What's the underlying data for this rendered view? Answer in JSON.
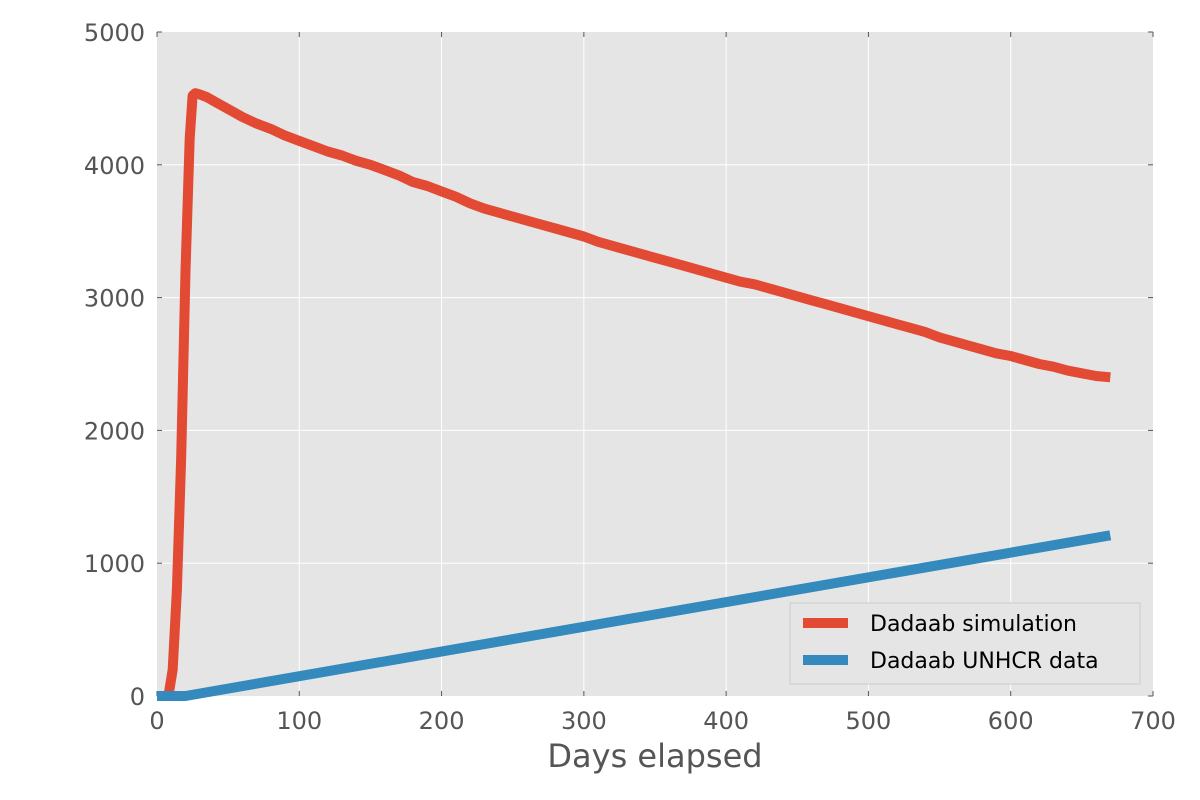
{
  "chart_data": {
    "type": "line",
    "title": "",
    "xlabel": "Days elapsed",
    "ylabel": "",
    "xlim": [
      0,
      700
    ],
    "ylim": [
      0,
      5000
    ],
    "x_ticks": [
      0,
      100,
      200,
      300,
      400,
      500,
      600,
      700
    ],
    "x_tick_labels": [
      "0",
      "100",
      "200",
      "300",
      "400",
      "500",
      "600",
      "700"
    ],
    "y_ticks": [
      0,
      1000,
      2000,
      3000,
      4000,
      5000
    ],
    "y_tick_labels": [
      "0",
      "1000",
      "2000",
      "3000",
      "4000",
      "5000"
    ],
    "grid": true,
    "legend_position": "lower-right",
    "series": [
      {
        "name": "Dadaab simulation",
        "color": "#E24A33",
        "x": [
          0,
          8,
          11,
          14,
          17,
          20,
          23,
          25,
          27,
          30,
          35,
          40,
          50,
          60,
          70,
          80,
          90,
          100,
          110,
          120,
          130,
          140,
          150,
          160,
          170,
          180,
          190,
          200,
          210,
          220,
          230,
          240,
          250,
          260,
          270,
          280,
          290,
          300,
          310,
          320,
          330,
          340,
          350,
          360,
          370,
          380,
          390,
          400,
          410,
          420,
          430,
          440,
          450,
          460,
          470,
          480,
          490,
          500,
          510,
          520,
          530,
          540,
          550,
          560,
          570,
          580,
          590,
          600,
          610,
          620,
          630,
          640,
          650,
          660,
          670
        ],
        "values": [
          0,
          0,
          200,
          800,
          1800,
          3200,
          4200,
          4520,
          4540,
          4530,
          4510,
          4480,
          4420,
          4360,
          4310,
          4270,
          4220,
          4180,
          4140,
          4100,
          4070,
          4030,
          4000,
          3960,
          3920,
          3870,
          3840,
          3800,
          3760,
          3710,
          3670,
          3640,
          3610,
          3580,
          3550,
          3520,
          3490,
          3460,
          3420,
          3390,
          3360,
          3330,
          3300,
          3270,
          3240,
          3210,
          3180,
          3150,
          3120,
          3100,
          3070,
          3040,
          3010,
          2980,
          2950,
          2920,
          2890,
          2860,
          2830,
          2800,
          2770,
          2740,
          2700,
          2670,
          2640,
          2610,
          2580,
          2560,
          2530,
          2500,
          2480,
          2450,
          2430,
          2410,
          2400
        ]
      },
      {
        "name": "Dadaab UNHCR data",
        "color": "#348ABD",
        "x": [
          0,
          20,
          670
        ],
        "values": [
          0,
          0,
          1210
        ]
      }
    ]
  },
  "colors": {
    "plot_background": "#E5E5E5",
    "grid": "#ffffff",
    "tick_text": "#555555"
  }
}
